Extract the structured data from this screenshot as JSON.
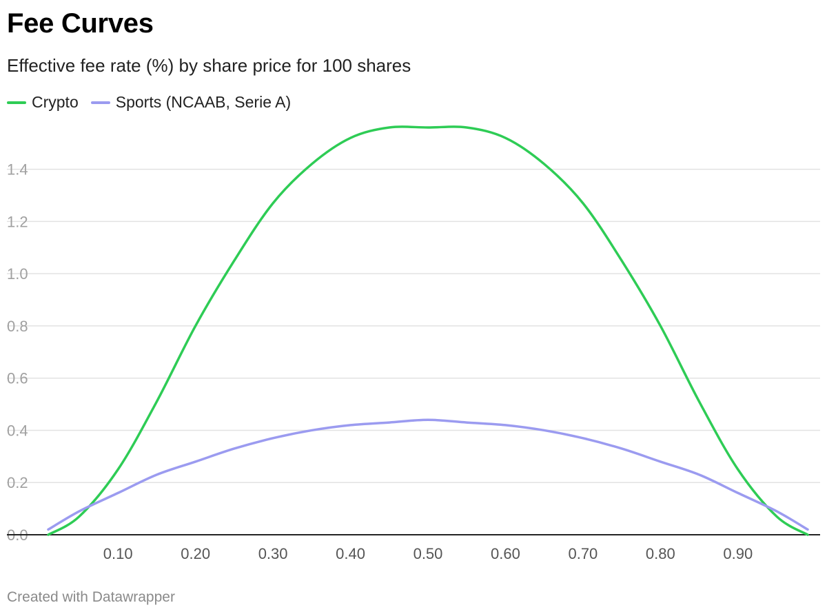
{
  "header": {
    "title": "Fee Curves",
    "subtitle": "Effective fee rate (%) by share price for 100 shares"
  },
  "legend": {
    "items": [
      {
        "label": "Crypto",
        "color": "#2ecc55"
      },
      {
        "label": "Sports (NCAAB, Serie A)",
        "color": "#9b9bf0"
      }
    ]
  },
  "footer": {
    "credit": "Created with Datawrapper"
  },
  "chart_data": {
    "type": "line",
    "title": "Fee Curves",
    "subtitle": "Effective fee rate (%) by share price for 100 shares",
    "xlabel": "",
    "ylabel": "",
    "xlim": [
      0.01,
      0.99
    ],
    "ylim": [
      0,
      1.56
    ],
    "y_ticks": [
      0.0,
      0.2,
      0.4,
      0.6,
      0.8,
      1.0,
      1.2,
      1.4
    ],
    "y_tick_labels": [
      "0.0",
      "0.2",
      "0.4",
      "0.6",
      "0.8",
      "1.0",
      "1.2",
      "1.4"
    ],
    "x_ticks": [
      0.1,
      0.2,
      0.3,
      0.4,
      0.5,
      0.6,
      0.7,
      0.8,
      0.9
    ],
    "x_tick_labels": [
      "0.10",
      "0.20",
      "0.30",
      "0.40",
      "0.50",
      "0.60",
      "0.70",
      "0.80",
      "0.90"
    ],
    "grid": true,
    "legend_position": "top-left",
    "x": [
      0.01,
      0.05,
      0.1,
      0.15,
      0.2,
      0.25,
      0.3,
      0.35,
      0.4,
      0.45,
      0.5,
      0.55,
      0.6,
      0.65,
      0.7,
      0.75,
      0.8,
      0.85,
      0.9,
      0.95,
      0.99
    ],
    "series": [
      {
        "name": "Crypto",
        "color": "#2ecc55",
        "values": [
          0.0,
          0.07,
          0.25,
          0.51,
          0.8,
          1.05,
          1.27,
          1.42,
          1.52,
          1.56,
          1.56,
          1.56,
          1.52,
          1.42,
          1.27,
          1.05,
          0.8,
          0.51,
          0.25,
          0.07,
          0.0
        ]
      },
      {
        "name": "Sports (NCAAB, Serie A)",
        "color": "#9b9bf0",
        "values": [
          0.02,
          0.09,
          0.16,
          0.23,
          0.28,
          0.33,
          0.37,
          0.4,
          0.42,
          0.43,
          0.44,
          0.43,
          0.42,
          0.4,
          0.37,
          0.33,
          0.28,
          0.23,
          0.16,
          0.09,
          0.02
        ]
      }
    ]
  }
}
